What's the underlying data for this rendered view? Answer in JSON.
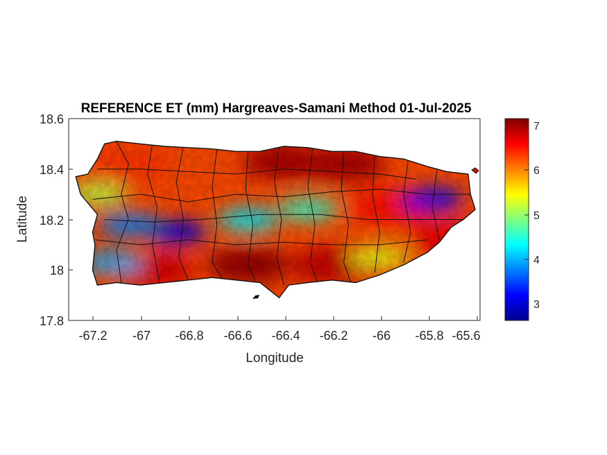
{
  "title": "REFERENCE ET (mm) Hargreaves-Samani Method  01-Jul-2025",
  "xlabel": "Longitude",
  "ylabel": "Latitude",
  "x_ticks": [
    "-67.2",
    "-67",
    "-66.8",
    "-66.6",
    "-66.4",
    "-66.2",
    "-66",
    "-65.8",
    "-65.6"
  ],
  "y_ticks": [
    "18.6",
    "18.4",
    "18.2",
    "18",
    "17.8"
  ],
  "colorbar_ticks": [
    "7",
    "6",
    "5",
    "4",
    "3"
  ],
  "chart_data": {
    "type": "heatmap",
    "title": "REFERENCE ET (mm) Hargreaves-Samani Method  01-Jul-2025",
    "xlabel": "Longitude",
    "ylabel": "Latitude",
    "xlim": [
      -67.3,
      -65.58
    ],
    "ylim": [
      17.8,
      18.6
    ],
    "colorbar": {
      "colormap": "jet",
      "range": [
        2.65,
        7.2
      ],
      "ticks": [
        3,
        4,
        5,
        6,
        7
      ]
    },
    "grid": false,
    "coast_outline": [
      [
        -67.27,
        18.37
      ],
      [
        -67.22,
        18.38
      ],
      [
        -67.18,
        18.44
      ],
      [
        -67.15,
        18.5
      ],
      [
        -67.1,
        18.51
      ],
      [
        -67.0,
        18.5
      ],
      [
        -66.9,
        18.49
      ],
      [
        -66.8,
        18.485
      ],
      [
        -66.7,
        18.48
      ],
      [
        -66.6,
        18.47
      ],
      [
        -66.5,
        18.47
      ],
      [
        -66.4,
        18.49
      ],
      [
        -66.3,
        18.485
      ],
      [
        -66.2,
        18.47
      ],
      [
        -66.1,
        18.47
      ],
      [
        -66.0,
        18.45
      ],
      [
        -65.9,
        18.44
      ],
      [
        -65.8,
        18.41
      ],
      [
        -65.72,
        18.39
      ],
      [
        -65.63,
        18.38
      ],
      [
        -65.62,
        18.3
      ],
      [
        -65.6,
        18.24
      ],
      [
        -65.65,
        18.2
      ],
      [
        -65.7,
        18.17
      ],
      [
        -65.75,
        18.11
      ],
      [
        -65.8,
        18.07
      ],
      [
        -65.9,
        18.02
      ],
      [
        -66.0,
        17.98
      ],
      [
        -66.1,
        17.95
      ],
      [
        -66.2,
        17.96
      ],
      [
        -66.3,
        17.95
      ],
      [
        -66.38,
        17.94
      ],
      [
        -66.42,
        17.89
      ],
      [
        -66.5,
        17.95
      ],
      [
        -66.6,
        17.96
      ],
      [
        -66.7,
        17.97
      ],
      [
        -66.8,
        17.96
      ],
      [
        -66.9,
        17.95
      ],
      [
        -67.0,
        17.94
      ],
      [
        -67.1,
        17.95
      ],
      [
        -67.18,
        17.94
      ],
      [
        -67.2,
        18.0
      ],
      [
        -67.19,
        18.1
      ],
      [
        -67.2,
        18.15
      ],
      [
        -67.18,
        18.22
      ],
      [
        -67.25,
        18.3
      ],
      [
        -67.27,
        18.37
      ]
    ],
    "et_features": [
      {
        "lon": -66.4,
        "lat": 18.43,
        "value": 7.0
      },
      {
        "lon": -66.15,
        "lat": 18.42,
        "value": 7.0
      },
      {
        "lon": -66.55,
        "lat": 18.02,
        "value": 7.1
      },
      {
        "lon": -66.2,
        "lat": 18.02,
        "value": 6.9
      },
      {
        "lon": -66.95,
        "lat": 18.0,
        "value": 6.8
      },
      {
        "lon": -65.95,
        "lat": 18.25,
        "value": 6.6
      },
      {
        "lon": -65.7,
        "lat": 18.12,
        "value": 6.7
      },
      {
        "lon": -67.05,
        "lat": 18.42,
        "value": 6.4
      },
      {
        "lon": -66.85,
        "lat": 18.15,
        "value": 3.1
      },
      {
        "lon": -67.05,
        "lat": 18.18,
        "value": 3.8
      },
      {
        "lon": -66.55,
        "lat": 18.2,
        "value": 4.3
      },
      {
        "lon": -66.3,
        "lat": 18.24,
        "value": 4.6
      },
      {
        "lon": -67.12,
        "lat": 18.03,
        "value": 4.0
      },
      {
        "lon": -65.78,
        "lat": 18.28,
        "value": 3.2
      },
      {
        "lon": -67.18,
        "lat": 18.3,
        "value": 5.2
      },
      {
        "lon": -66.0,
        "lat": 18.05,
        "value": 5.4
      }
    ]
  }
}
